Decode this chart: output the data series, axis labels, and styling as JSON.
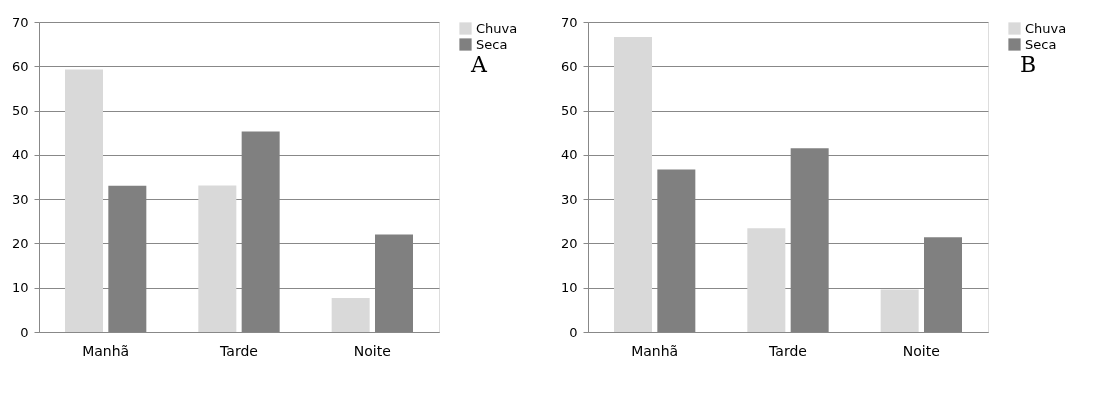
{
  "chart_data": [
    {
      "type": "bar",
      "categories": [
        "Manhã",
        "Tarde",
        "Noite"
      ],
      "series": [
        {
          "name": "Chuva",
          "color": "#d9d9d9",
          "values": [
            59.3,
            33.1,
            7.7
          ]
        },
        {
          "name": "Seca",
          "color": "#808080",
          "values": [
            33.0,
            45.3,
            22.0
          ]
        }
      ],
      "ylim": [
        0,
        70
      ],
      "yticks": [
        0,
        10,
        20,
        30,
        40,
        50,
        60,
        70
      ],
      "grid": "y",
      "legend": "right",
      "annotations": [
        "A"
      ]
    },
    {
      "type": "bar",
      "categories": [
        "Manhã",
        "Tarde",
        "Noite"
      ],
      "series": [
        {
          "name": "Chuva",
          "color": "#d9d9d9",
          "values": [
            66.6,
            23.4,
            9.6
          ]
        },
        {
          "name": "Seca",
          "color": "#808080",
          "values": [
            36.7,
            41.5,
            21.4
          ]
        }
      ],
      "ylim": [
        0,
        70
      ],
      "yticks": [
        0,
        10,
        20,
        30,
        40,
        50,
        60,
        70
      ],
      "grid": "y",
      "legend": "right",
      "annotations": [
        "B"
      ]
    }
  ]
}
